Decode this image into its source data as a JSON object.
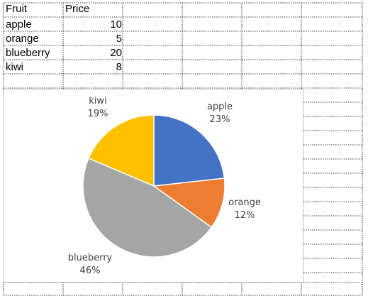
{
  "table": {
    "headers": [
      "Fruit",
      "Price"
    ],
    "rows": [
      {
        "fruit": "apple",
        "price": "10"
      },
      {
        "fruit": "orange",
        "price": "5"
      },
      {
        "fruit": "blueberry",
        "price": "20"
      },
      {
        "fruit": "kiwi",
        "price": "8"
      }
    ]
  },
  "chart_data": {
    "type": "pie",
    "categories": [
      "apple",
      "orange",
      "blueberry",
      "kiwi"
    ],
    "values": [
      10,
      5,
      20,
      8
    ],
    "percent_labels": [
      "23%",
      "12%",
      "46%",
      "19%"
    ],
    "colors": [
      "#4472C4",
      "#ED7D31",
      "#A5A5A5",
      "#FFC000"
    ],
    "title": "",
    "legend": "none",
    "data_labels": "category and percentage"
  }
}
